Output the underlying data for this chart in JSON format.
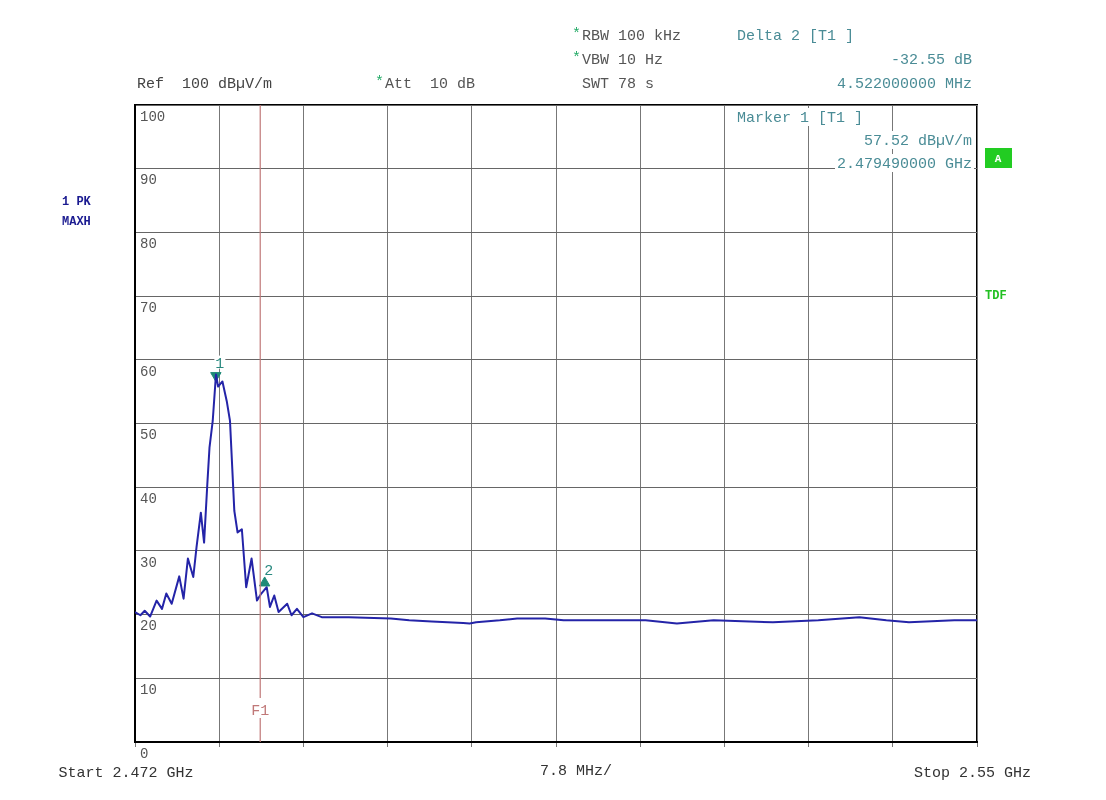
{
  "chart_data": {
    "type": "line",
    "x": [
      2.472,
      2.4725,
      2.4729,
      2.4734,
      2.474,
      2.4745,
      2.4749,
      2.4754,
      2.4761,
      2.4765,
      2.4769,
      2.4774,
      2.4777,
      2.4781,
      2.4784,
      2.4787,
      2.4789,
      2.4792,
      2.4795,
      2.4797,
      2.4801,
      2.4805,
      2.4808,
      2.4812,
      2.4815,
      2.4819,
      2.4823,
      2.4828,
      2.4833,
      2.4837,
      2.4842,
      2.4845,
      2.4849,
      2.4853,
      2.4861,
      2.4865,
      2.487,
      2.4876,
      2.4884,
      2.4893,
      2.4907,
      2.4918,
      2.4957,
      2.4974,
      2.4995,
      2.5024,
      2.503,
      2.5036,
      2.5058,
      2.5074,
      2.51,
      2.5117,
      2.5193,
      2.5222,
      2.5235,
      2.5256,
      2.5311,
      2.5353,
      2.5391,
      2.5416,
      2.5437,
      2.5479,
      2.55
    ],
    "series": [
      {
        "color": "#2424a8",
        "values": [
          20.4,
          19.9,
          20.6,
          19.7,
          22.2,
          20.9,
          23.3,
          21.7,
          26.0,
          22.5,
          28.8,
          25.9,
          30.6,
          36.0,
          31.3,
          40.5,
          46.2,
          50.4,
          57.7,
          55.8,
          56.6,
          53.5,
          50.4,
          36.3,
          32.9,
          33.4,
          24.3,
          28.8,
          22.2,
          23.3,
          24.3,
          21.2,
          23.0,
          20.4,
          21.7,
          19.9,
          20.9,
          19.6,
          20.2,
          19.6,
          19.6,
          19.6,
          19.4,
          19.1,
          18.9,
          18.7,
          18.6,
          18.8,
          19.1,
          19.4,
          19.4,
          19.1,
          19.1,
          18.6,
          18.8,
          19.1,
          18.8,
          19.1,
          19.6,
          19.1,
          18.8,
          19.1,
          19.1
        ]
      },
      {
        "type": "scatter",
        "color": "#1f8a78",
        "marker": "triangle",
        "x": [
          2.47949,
          2.484012
        ],
        "values": [
          57.52,
          24.97
        ]
      }
    ],
    "xlabel": "7.8 MHz/",
    "xlim": [
      2.472,
      2.55
    ],
    "xticks": [
      2.472,
      {
        "value": 2.4798,
        "label": null
      },
      {
        "value": 2.4876,
        "label": null
      },
      {
        "value": 2.4954,
        "label": null
      },
      {
        "value": 2.5032,
        "label": null
      },
      {
        "value": 2.511,
        "label": null
      },
      {
        "value": 2.5188,
        "label": null
      },
      {
        "value": 2.5266,
        "label": null
      },
      {
        "value": 2.5344,
        "label": null
      },
      {
        "value": 2.5422,
        "label": null
      },
      2.55
    ],
    "ylim": [
      0,
      100
    ],
    "yticks": [
      0,
      10,
      20,
      30,
      40,
      50,
      60,
      70,
      80,
      90,
      100
    ],
    "grid": true,
    "legend": false,
    "marker": "none",
    "line_style": "solid",
    "ref_lines": [
      {
        "axis": "x",
        "value": 2.4836,
        "label": "F1",
        "color": "#c07878"
      }
    ],
    "annotations": [
      "Ref  100 dBµV/m",
      "*Att  10 dB",
      "*RBW 100 kHz",
      "*VBW 10 Hz",
      "SWT 78 s",
      "Delta 2 [T1 ]",
      "-32.55 dB",
      "4.522000000 MHz",
      "Marker 1 [T1 ]",
      "57.52 dBµV/m",
      "2.479490000 GHz",
      "1 PK",
      "MAXH",
      "A",
      "TDF",
      "Start",
      "GHz",
      "Stop",
      "GHz",
      {
        "text": "1",
        "x": 2.47949,
        "y": 57.52
      },
      {
        "text": "2",
        "x": 2.484012,
        "y": 24.97
      }
    ]
  }
}
